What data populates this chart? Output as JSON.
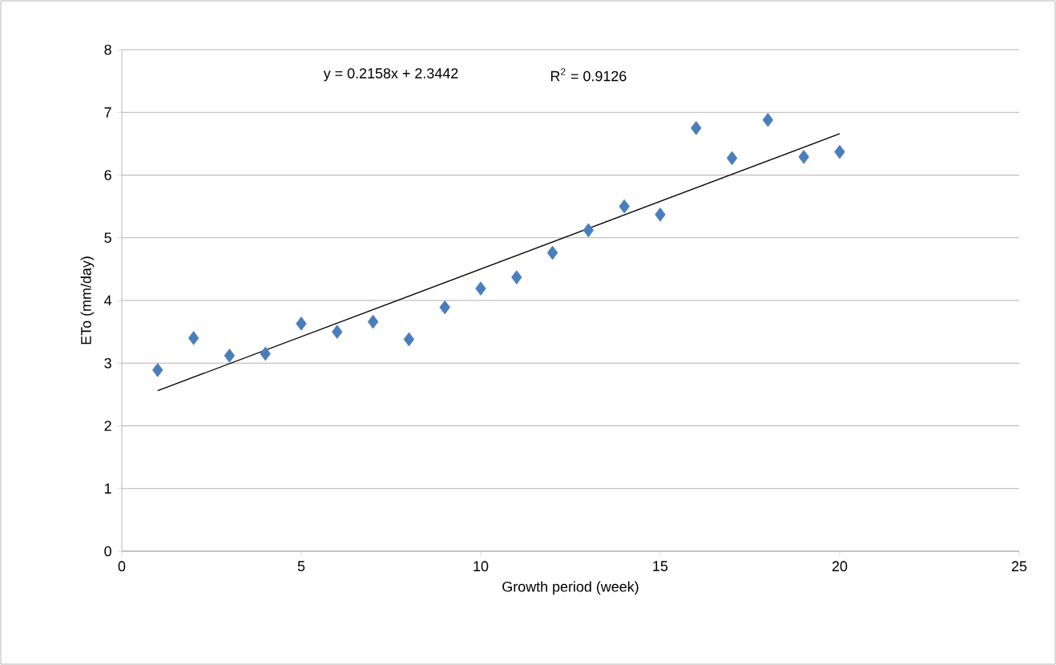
{
  "chart_data": {
    "type": "scatter",
    "xlabel": "Growth period (week)",
    "ylabel": "ETo (mm/day)",
    "xlim": [
      0,
      25
    ],
    "xticks": [
      0,
      5,
      10,
      15,
      20,
      25
    ],
    "ylim": [
      0,
      8
    ],
    "yticks": [
      0,
      1,
      2,
      3,
      4,
      5,
      6,
      7,
      8
    ],
    "grid": "y",
    "annotations": [
      "y = 0.2158x + 2.3442",
      "R$^{2}$ = 0.9126"
    ],
    "series": [
      {
        "marker": "diamond",
        "color": "#4a7ebb",
        "x": [
          1,
          2,
          3,
          4,
          5,
          6,
          7,
          8,
          9,
          10,
          11,
          12,
          13,
          14,
          15,
          16,
          17,
          18,
          19,
          20
        ],
        "values": [
          2.89,
          3.4,
          3.12,
          3.15,
          3.63,
          3.5,
          3.66,
          3.38,
          3.89,
          4.19,
          4.37,
          4.76,
          5.12,
          5.5,
          5.37,
          6.75,
          6.27,
          6.88,
          6.29,
          6.37
        ]
      },
      {
        "type": "line",
        "marker": "none",
        "color": "#000000",
        "x": [
          1,
          20
        ],
        "values": [
          2.56,
          6.66
        ]
      }
    ]
  }
}
